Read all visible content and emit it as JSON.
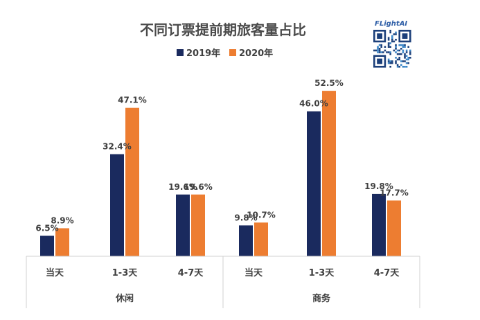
{
  "chart_data": {
    "type": "bar",
    "title": "不同订票提前期旅客量占比",
    "groups": [
      {
        "name": "休闲",
        "categories": [
          "当天",
          "1-3天",
          "4-7天"
        ]
      },
      {
        "name": "商务",
        "categories": [
          "当天",
          "1-3天",
          "4-7天"
        ]
      }
    ],
    "categories": [
      "当天",
      "1-3天",
      "4-7天",
      "当天",
      "1-3天",
      "4-7天"
    ],
    "series": [
      {
        "name": "2019年",
        "color": "#1a2a5e",
        "values": [
          6.5,
          32.4,
          19.6,
          9.8,
          46.0,
          19.8
        ],
        "labels": [
          "6.5%",
          "32.4%",
          "19.6%",
          "9.8%",
          "46.0%",
          "19.8%"
        ]
      },
      {
        "name": "2020年",
        "color": "#ed7d31",
        "values": [
          8.9,
          47.1,
          19.6,
          10.7,
          52.5,
          17.7
        ],
        "labels": [
          "8.9%",
          "47.1%",
          "19.6%",
          "10.7%",
          "52.5%",
          "17.7%"
        ]
      }
    ],
    "ylim": [
      0,
      60
    ],
    "grid": false,
    "legend_position": "top-center"
  },
  "brand": {
    "logo_text": "FLightAI",
    "qr_icon": "qr-code-icon"
  }
}
